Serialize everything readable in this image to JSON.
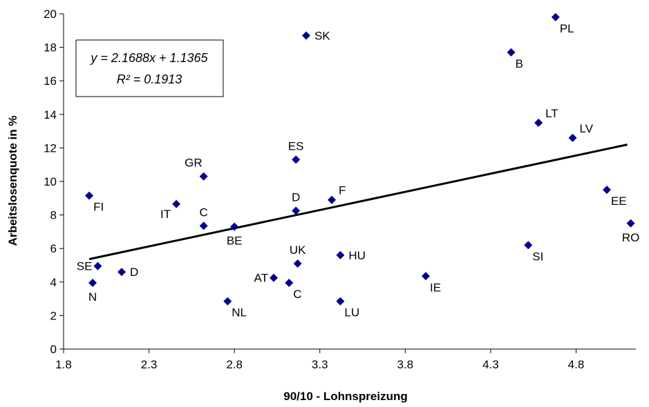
{
  "chart_data": {
    "type": "scatter",
    "xlabel": "90/10 - Lohnspreizung",
    "ylabel": "Arbeitslosenquote in %",
    "xlim": [
      1.8,
      5.15
    ],
    "ylim": [
      0,
      20
    ],
    "xticks": [
      1.8,
      2.3,
      2.8,
      3.3,
      3.8,
      4.3,
      4.8
    ],
    "xtick_labels": [
      "1.8",
      "2.3",
      "2.8",
      "3.3",
      "3.8",
      "4.3",
      "4.8"
    ],
    "yticks": [
      0,
      2,
      4,
      6,
      8,
      10,
      12,
      14,
      16,
      18,
      20
    ],
    "ytick_labels": [
      "0",
      "2",
      "4",
      "6",
      "8",
      "10",
      "12",
      "14",
      "16",
      "18",
      "20"
    ],
    "marker_color": "#00008B",
    "line_color": "#000000",
    "trendline": {
      "slope": 2.1688,
      "intercept": 1.1365,
      "x_range": [
        1.95,
        5.1
      ]
    },
    "equation_lines": [
      "y = 2.1688x + 1.1365",
      "R² = 0.1913"
    ],
    "points": [
      {
        "label": "PL",
        "x": 4.68,
        "y": 19.8,
        "pos": "br"
      },
      {
        "label": "SK",
        "x": 3.22,
        "y": 18.7,
        "pos": "r"
      },
      {
        "label": "B",
        "x": 4.42,
        "y": 17.7,
        "pos": "br"
      },
      {
        "label": "LT",
        "x": 4.58,
        "y": 13.5,
        "pos": "tr"
      },
      {
        "label": "LV",
        "x": 4.78,
        "y": 12.6,
        "pos": "tr"
      },
      {
        "label": "ES",
        "x": 3.16,
        "y": 11.3,
        "pos": "t"
      },
      {
        "label": "GR",
        "x": 2.62,
        "y": 10.3,
        "pos": "tl"
      },
      {
        "label": "EE",
        "x": 4.98,
        "y": 9.5,
        "pos": "br"
      },
      {
        "label": "FI",
        "x": 1.95,
        "y": 9.15,
        "pos": "br"
      },
      {
        "label": "F",
        "x": 3.37,
        "y": 8.9,
        "pos": "tr"
      },
      {
        "label": "IT",
        "x": 2.46,
        "y": 8.65,
        "pos": "bl"
      },
      {
        "label": "D",
        "x": 3.16,
        "y": 8.25,
        "pos": "t"
      },
      {
        "label": "RO",
        "x": 5.12,
        "y": 7.5,
        "pos": "b"
      },
      {
        "label": "C",
        "x": 2.62,
        "y": 7.35,
        "pos": "t"
      },
      {
        "label": "BE",
        "x": 2.8,
        "y": 7.3,
        "pos": "b"
      },
      {
        "label": "SI",
        "x": 4.52,
        "y": 6.2,
        "pos": "br"
      },
      {
        "label": "HU",
        "x": 3.42,
        "y": 5.6,
        "pos": "r"
      },
      {
        "label": "UK",
        "x": 3.17,
        "y": 5.1,
        "pos": "t"
      },
      {
        "label": "SE",
        "x": 2.0,
        "y": 4.95,
        "pos": "l"
      },
      {
        "label": "D",
        "x": 2.14,
        "y": 4.6,
        "pos": "r"
      },
      {
        "label": "IE",
        "x": 3.92,
        "y": 4.35,
        "pos": "br"
      },
      {
        "label": "AT",
        "x": 3.03,
        "y": 4.25,
        "pos": "l"
      },
      {
        "label": "N",
        "x": 1.97,
        "y": 3.95,
        "pos": "b"
      },
      {
        "label": "C",
        "x": 3.12,
        "y": 3.95,
        "pos": "br"
      },
      {
        "label": "NL",
        "x": 2.76,
        "y": 2.85,
        "pos": "br"
      },
      {
        "label": "LU",
        "x": 3.42,
        "y": 2.85,
        "pos": "br"
      }
    ]
  }
}
